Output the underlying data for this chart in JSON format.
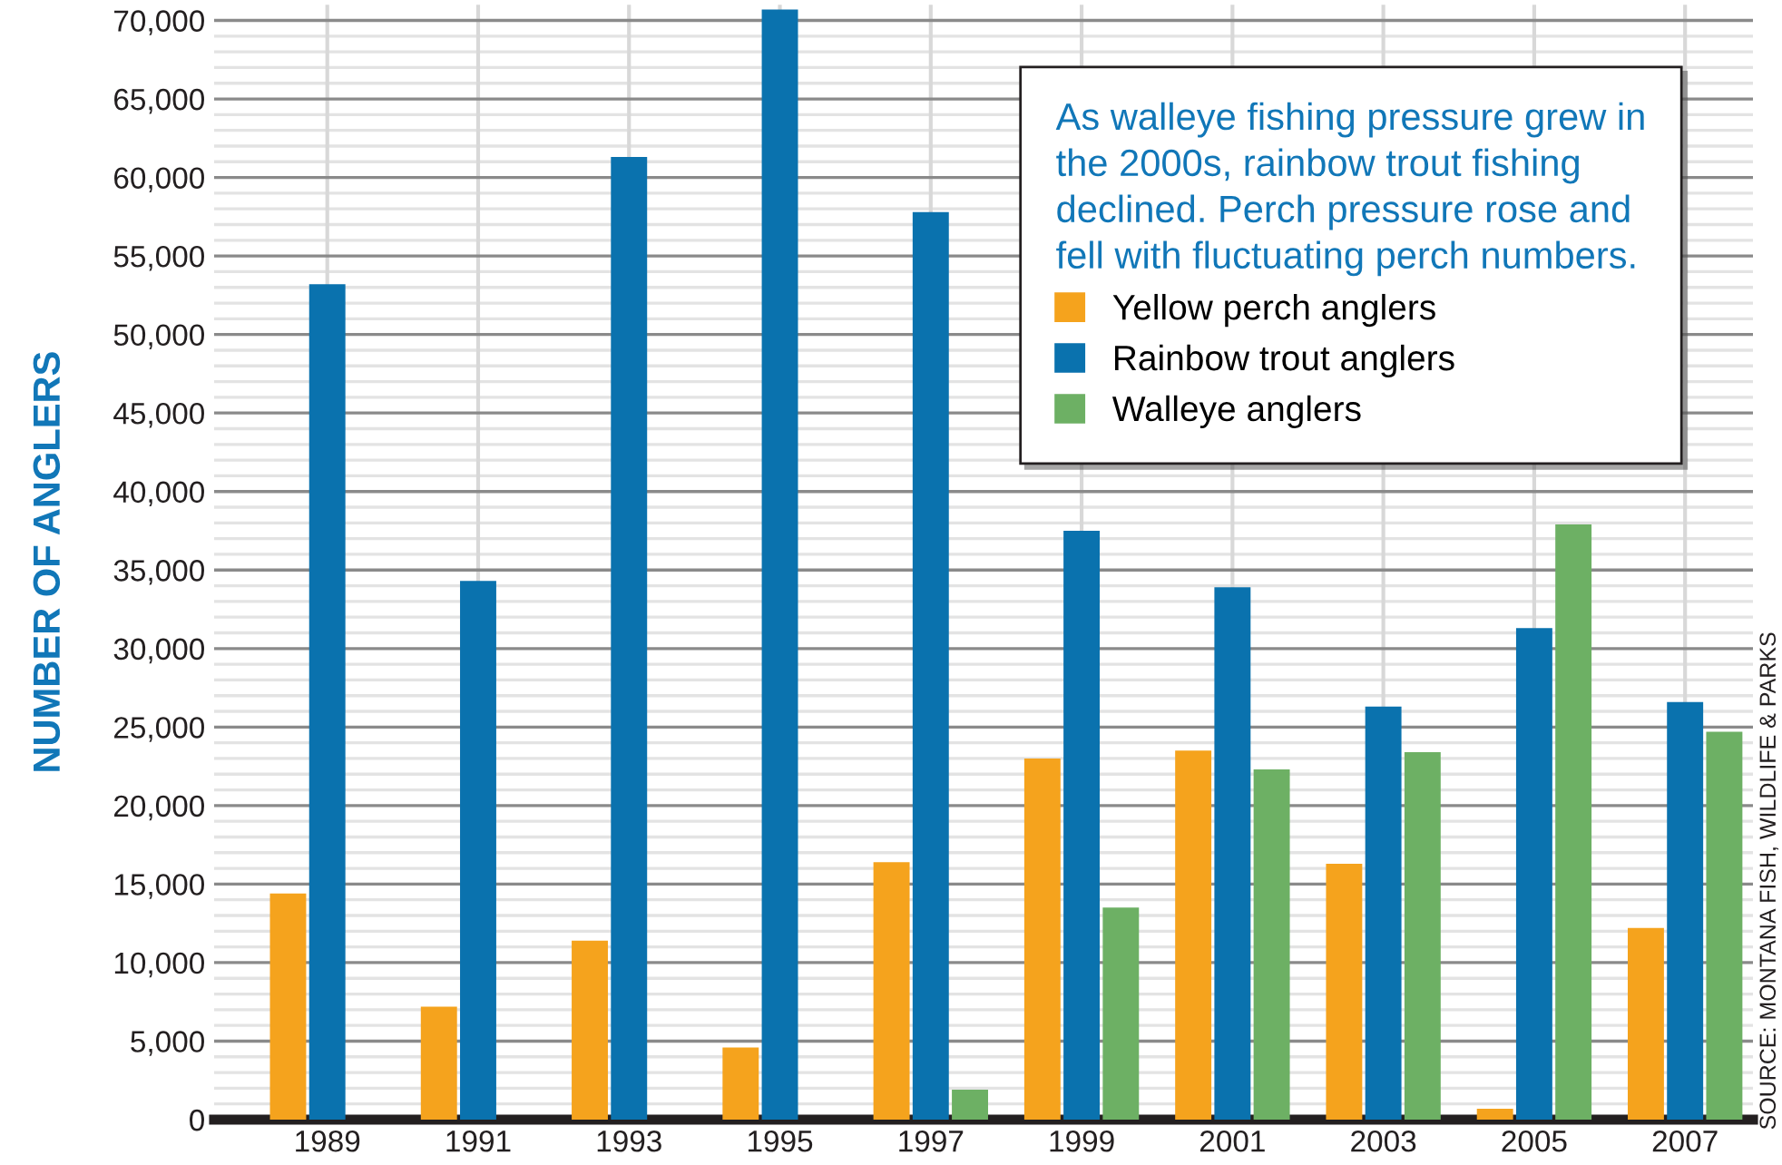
{
  "chart_data": {
    "type": "bar",
    "ylabel": "NUMBER OF ANGLERS",
    "legend_title": "As walleye fishing pressure grew in the 2000s, rainbow trout fishing declined. Perch pressure rose and fell with fluctuating perch numbers.",
    "categories": [
      "1989",
      "1991",
      "1993",
      "1995",
      "1997",
      "1999",
      "2001",
      "2003",
      "2005",
      "2007"
    ],
    "series": [
      {
        "name": "Yellow perch anglers",
        "color": "#f5a31d",
        "values": [
          14400,
          7200,
          11400,
          4600,
          16400,
          23000,
          23500,
          16300,
          700,
          12200
        ]
      },
      {
        "name": "Rainbow trout anglers",
        "color": "#0a72ae",
        "values": [
          53200,
          34300,
          61300,
          70700,
          57800,
          37500,
          33900,
          26300,
          31300,
          26600
        ]
      },
      {
        "name": "Walleye anglers",
        "color": "#6db064",
        "values": [
          null,
          null,
          null,
          null,
          1900,
          13500,
          22300,
          23400,
          37900,
          24700
        ]
      }
    ],
    "ylim": [
      0,
      71000
    ],
    "yticks": [
      {
        "value": 0,
        "label": "0"
      },
      {
        "value": 5000,
        "label": "5,000"
      },
      {
        "value": 10000,
        "label": "10,000"
      },
      {
        "value": 15000,
        "label": "15,000"
      },
      {
        "value": 20000,
        "label": "20,000"
      },
      {
        "value": 25000,
        "label": "25,000"
      },
      {
        "value": 30000,
        "label": "30,000"
      },
      {
        "value": 35000,
        "label": "35,000"
      },
      {
        "value": 40000,
        "label": "40,000"
      },
      {
        "value": 45000,
        "label": "45,000"
      },
      {
        "value": 50000,
        "label": "50,000"
      },
      {
        "value": 55000,
        "label": "55,000"
      },
      {
        "value": 60000,
        "label": "60,000"
      },
      {
        "value": 65000,
        "label": "65,000"
      },
      {
        "value": 70000,
        "label": "70,000"
      }
    ],
    "grid": true,
    "legend": "top right",
    "annotations": [
      "SOURCE: MONTANA FISH, WILDLIFE & PARKS"
    ]
  }
}
